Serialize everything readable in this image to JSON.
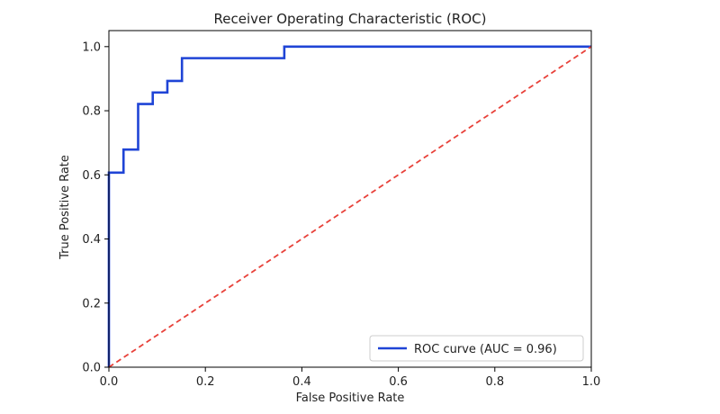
{
  "chart_data": {
    "type": "line",
    "title": "Receiver Operating Characteristic (ROC)",
    "xlabel": "False Positive Rate",
    "ylabel": "True Positive Rate",
    "xlim": [
      0.0,
      1.0
    ],
    "ylim": [
      0.0,
      1.05
    ],
    "xticks": [
      "0.0",
      "0.2",
      "0.4",
      "0.6",
      "0.8",
      "1.0"
    ],
    "yticks": [
      "0.0",
      "0.2",
      "0.4",
      "0.6",
      "0.8",
      "1.0"
    ],
    "grid": false,
    "legend_position": "bottom-right",
    "series": [
      {
        "name": "ROC curve (AUC = 0.96)",
        "style": "solid-step",
        "color": "#1f44d6",
        "x": [
          0.0,
          0.0,
          0.0303,
          0.0303,
          0.0606,
          0.0606,
          0.0909,
          0.0909,
          0.1212,
          0.1212,
          0.1515,
          0.1515,
          0.3636,
          0.3636,
          1.0
        ],
        "y": [
          0.0,
          0.607,
          0.607,
          0.679,
          0.679,
          0.821,
          0.821,
          0.857,
          0.857,
          0.893,
          0.893,
          0.964,
          0.964,
          1.0,
          1.0
        ]
      },
      {
        "style": "dashed",
        "color": "#e8413a",
        "x": [
          0.0,
          1.0
        ],
        "y": [
          0.0,
          1.0
        ]
      }
    ]
  }
}
